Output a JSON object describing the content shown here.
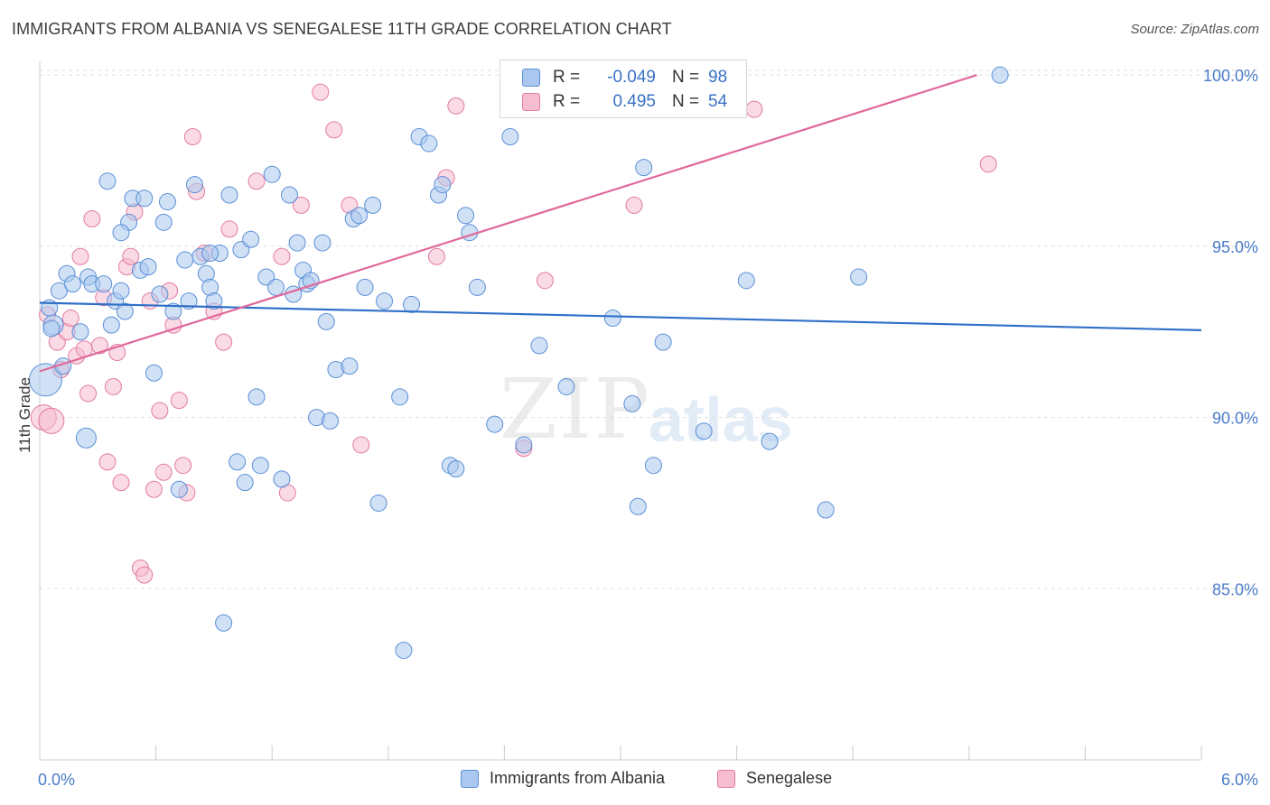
{
  "title": "IMMIGRANTS FROM ALBANIA VS SENEGALESE 11TH GRADE CORRELATION CHART",
  "source": "Source: ZipAtlas.com",
  "watermark": {
    "zip": "ZIP",
    "atlas": "atlas"
  },
  "colors": {
    "blue_fill": "#aac8ef",
    "blue_stroke": "#5b8fd6",
    "blue_line": "#2f6fc8",
    "pink_fill": "#f6bcd0",
    "pink_stroke": "#e27ba2",
    "pink_line": "#e0689a",
    "grid": "#dddddd",
    "axis_text": "#4a7cc9"
  },
  "legend": {
    "rows": [
      {
        "r_label": "R =",
        "r_value": "-0.049",
        "n_label": "N =",
        "n_value": "98",
        "series": "blue"
      },
      {
        "r_label": "R =",
        "r_value": "0.495",
        "n_label": "N =",
        "n_value": "54",
        "series": "pink"
      }
    ]
  },
  "bottom_legend": [
    {
      "label": "Immigrants from Albania",
      "series": "blue"
    },
    {
      "label": "Senegalese",
      "series": "pink"
    }
  ],
  "chart_data": {
    "type": "scatter",
    "title": "IMMIGRANTS FROM ALBANIA VS SENEGALESE 11TH GRADE CORRELATION CHART",
    "xlabel": "",
    "ylabel": "11th Grade",
    "xlim": [
      0.0,
      6.0
    ],
    "ylim": [
      80.0,
      100.4
    ],
    "x_tick_labels": [
      "0.0%",
      "6.0%"
    ],
    "y_ticks": [
      85.0,
      90.0,
      95.0,
      100.0
    ],
    "y_tick_labels": [
      "85.0%",
      "90.0%",
      "95.0%",
      "100.0%"
    ],
    "grid": true,
    "legend_position": "top-center",
    "series": [
      {
        "name": "Immigrants from Albania",
        "color": "blue",
        "points": [
          [
            0.03,
            91.1
          ],
          [
            0.05,
            93.2
          ],
          [
            0.07,
            92.7
          ],
          [
            0.1,
            93.7
          ],
          [
            0.12,
            91.5
          ],
          [
            0.14,
            94.2
          ],
          [
            0.17,
            93.9
          ],
          [
            0.21,
            92.5
          ],
          [
            0.24,
            89.4
          ],
          [
            0.25,
            94.1
          ],
          [
            0.27,
            93.9
          ],
          [
            0.33,
            93.9
          ],
          [
            0.35,
            96.9
          ],
          [
            0.37,
            92.7
          ],
          [
            0.39,
            93.4
          ],
          [
            0.42,
            93.7
          ],
          [
            0.44,
            93.1
          ],
          [
            0.46,
            95.7
          ],
          [
            0.48,
            96.4
          ],
          [
            0.52,
            94.3
          ],
          [
            0.54,
            96.4
          ],
          [
            0.56,
            94.4
          ],
          [
            0.59,
            91.3
          ],
          [
            0.62,
            93.6
          ],
          [
            0.64,
            95.7
          ],
          [
            0.66,
            96.3
          ],
          [
            0.69,
            93.1
          ],
          [
            0.72,
            87.9
          ],
          [
            0.75,
            94.6
          ],
          [
            0.77,
            93.4
          ],
          [
            0.8,
            96.8
          ],
          [
            0.83,
            94.7
          ],
          [
            0.86,
            94.2
          ],
          [
            0.88,
            93.8
          ],
          [
            0.9,
            93.4
          ],
          [
            0.93,
            94.8
          ],
          [
            0.95,
            84.0
          ],
          [
            0.98,
            96.5
          ],
          [
            1.02,
            88.7
          ],
          [
            1.04,
            94.9
          ],
          [
            1.06,
            88.1
          ],
          [
            1.09,
            95.2
          ],
          [
            1.12,
            90.6
          ],
          [
            1.14,
            88.6
          ],
          [
            1.17,
            94.1
          ],
          [
            1.2,
            97.1
          ],
          [
            1.22,
            93.8
          ],
          [
            1.25,
            88.2
          ],
          [
            1.29,
            96.5
          ],
          [
            1.31,
            93.6
          ],
          [
            1.33,
            95.1
          ],
          [
            1.36,
            94.3
          ],
          [
            1.38,
            93.9
          ],
          [
            1.4,
            94.0
          ],
          [
            1.43,
            90.0
          ],
          [
            1.46,
            95.1
          ],
          [
            1.48,
            92.8
          ],
          [
            1.5,
            89.9
          ],
          [
            1.53,
            91.4
          ],
          [
            1.6,
            91.5
          ],
          [
            1.62,
            95.8
          ],
          [
            1.65,
            95.9
          ],
          [
            1.68,
            93.8
          ],
          [
            1.72,
            96.2
          ],
          [
            1.75,
            87.5
          ],
          [
            1.78,
            93.4
          ],
          [
            1.86,
            90.6
          ],
          [
            1.88,
            83.2
          ],
          [
            1.92,
            93.3
          ],
          [
            1.96,
            98.2
          ],
          [
            2.01,
            98.0
          ],
          [
            2.06,
            96.5
          ],
          [
            2.08,
            96.8
          ],
          [
            2.12,
            88.6
          ],
          [
            2.15,
            88.5
          ],
          [
            2.2,
            95.9
          ],
          [
            2.22,
            95.4
          ],
          [
            2.26,
            93.8
          ],
          [
            2.35,
            89.8
          ],
          [
            2.43,
            98.2
          ],
          [
            2.5,
            89.2
          ],
          [
            2.58,
            92.1
          ],
          [
            2.72,
            90.9
          ],
          [
            2.96,
            92.9
          ],
          [
            3.06,
            90.4
          ],
          [
            3.09,
            87.4
          ],
          [
            3.12,
            97.3
          ],
          [
            3.17,
            88.6
          ],
          [
            3.22,
            92.2
          ],
          [
            3.43,
            89.6
          ],
          [
            3.65,
            94.0
          ],
          [
            3.77,
            89.3
          ],
          [
            4.06,
            87.3
          ],
          [
            4.23,
            94.1
          ],
          [
            4.96,
            100.0
          ],
          [
            0.06,
            92.6
          ],
          [
            0.42,
            95.4
          ],
          [
            0.88,
            94.8
          ]
        ],
        "trend": {
          "x": [
            0.0,
            6.0
          ],
          "y": [
            93.35,
            92.55
          ]
        }
      },
      {
        "name": "Senegalese",
        "color": "pink",
        "points": [
          [
            0.02,
            90.0
          ],
          [
            0.04,
            93.0
          ],
          [
            0.06,
            89.9
          ],
          [
            0.09,
            92.2
          ],
          [
            0.11,
            91.4
          ],
          [
            0.14,
            92.5
          ],
          [
            0.16,
            92.9
          ],
          [
            0.19,
            91.8
          ],
          [
            0.21,
            94.7
          ],
          [
            0.23,
            92.0
          ],
          [
            0.25,
            90.7
          ],
          [
            0.27,
            95.8
          ],
          [
            0.31,
            92.1
          ],
          [
            0.33,
            93.5
          ],
          [
            0.35,
            88.7
          ],
          [
            0.38,
            90.9
          ],
          [
            0.4,
            91.9
          ],
          [
            0.42,
            88.1
          ],
          [
            0.45,
            94.4
          ],
          [
            0.47,
            94.7
          ],
          [
            0.49,
            96.0
          ],
          [
            0.52,
            85.6
          ],
          [
            0.54,
            85.4
          ],
          [
            0.57,
            93.4
          ],
          [
            0.59,
            87.9
          ],
          [
            0.62,
            90.2
          ],
          [
            0.64,
            88.4
          ],
          [
            0.67,
            93.7
          ],
          [
            0.69,
            92.7
          ],
          [
            0.72,
            90.5
          ],
          [
            0.74,
            88.6
          ],
          [
            0.76,
            87.8
          ],
          [
            0.79,
            98.2
          ],
          [
            0.81,
            96.6
          ],
          [
            0.85,
            94.8
          ],
          [
            0.9,
            93.1
          ],
          [
            0.95,
            92.2
          ],
          [
            0.98,
            95.5
          ],
          [
            1.12,
            96.9
          ],
          [
            1.25,
            94.7
          ],
          [
            1.28,
            87.8
          ],
          [
            1.35,
            96.2
          ],
          [
            1.45,
            99.5
          ],
          [
            1.52,
            98.4
          ],
          [
            1.6,
            96.2
          ],
          [
            1.66,
            89.2
          ],
          [
            2.05,
            94.7
          ],
          [
            2.1,
            97.0
          ],
          [
            2.15,
            99.1
          ],
          [
            2.5,
            89.1
          ],
          [
            2.61,
            94.0
          ],
          [
            3.07,
            96.2
          ],
          [
            3.69,
            99.0
          ],
          [
            4.9,
            97.4
          ]
        ],
        "trend": {
          "x": [
            0.0,
            4.84
          ],
          "y": [
            91.35,
            100.0
          ]
        }
      }
    ]
  }
}
